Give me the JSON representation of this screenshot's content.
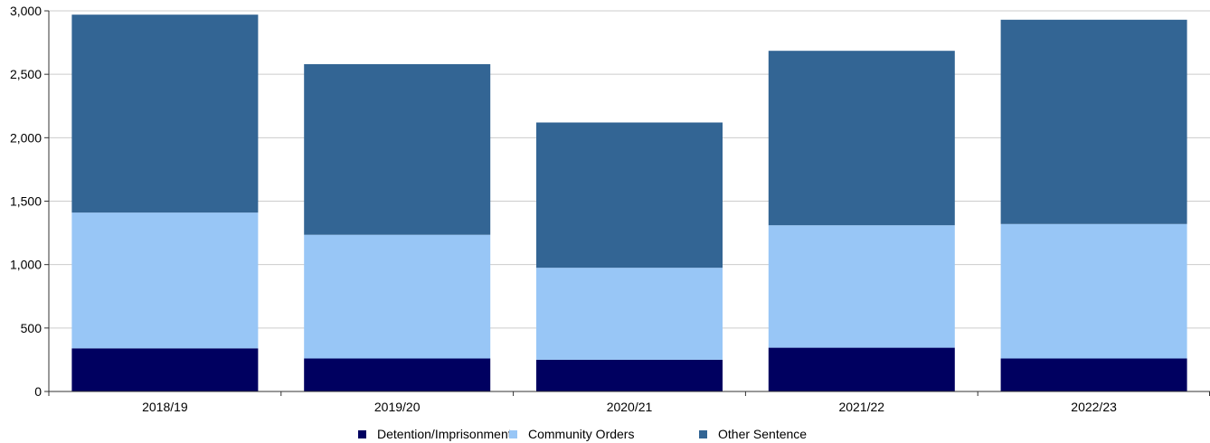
{
  "chart_data": {
    "type": "bar",
    "stacked": true,
    "title": "",
    "xlabel": "",
    "ylabel": "",
    "categories": [
      "2018/19",
      "2019/20",
      "2020/21",
      "2021/22",
      "2022/23"
    ],
    "series": [
      {
        "name": "Detention/Imprisonment",
        "color": "#000060",
        "values": [
          340,
          260,
          250,
          345,
          260
        ]
      },
      {
        "name": "Community Orders",
        "color": "#98c6f6",
        "values": [
          1070,
          975,
          725,
          965,
          1060
        ]
      },
      {
        "name": "Other Sentence",
        "color": "#336594",
        "values": [
          1560,
          1345,
          1145,
          1375,
          1610
        ]
      }
    ],
    "ylim": [
      0,
      3000
    ],
    "yticks": [
      0,
      500,
      1000,
      1500,
      2000,
      2500,
      3000
    ],
    "ytick_labels": [
      "0",
      "500",
      "1,000",
      "1,500",
      "2,000",
      "2,500",
      "3,000"
    ],
    "grid": true,
    "legend_position": "bottom"
  }
}
